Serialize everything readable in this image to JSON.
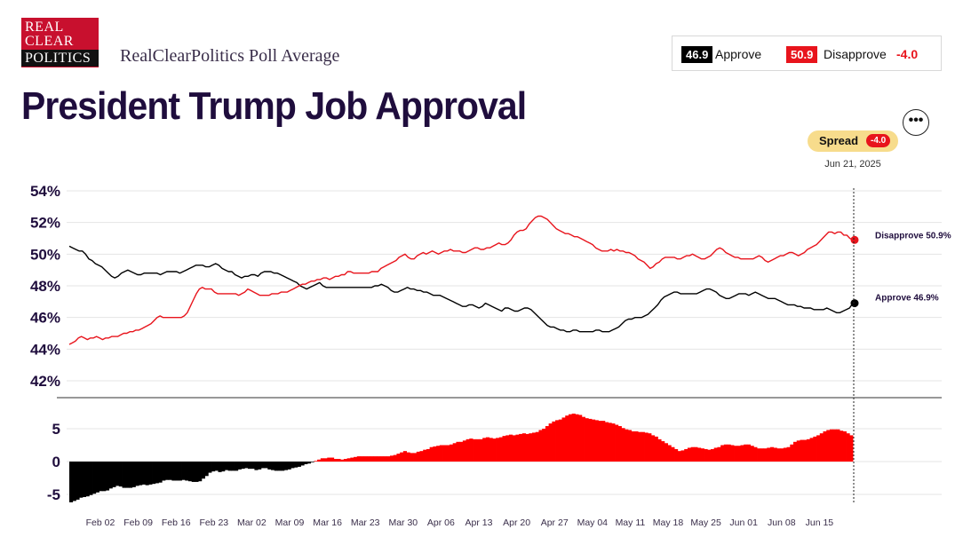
{
  "header": {
    "logo_line1": "REAL",
    "logo_line2": "CLEAR",
    "logo_line3": "POLITICS",
    "subtitle": "RealClearPolitics Poll Average",
    "title": "President Trump Job Approval",
    "more_icon": "ellipsis-icon"
  },
  "legend": {
    "approve_value": "46.9",
    "approve_label": "Approve",
    "disapprove_value": "50.9",
    "disapprove_label": "Disapprove",
    "spread_value": "-4.0"
  },
  "spread_badge": {
    "label": "Spread",
    "value": "-4.0",
    "date": "Jun 21, 2025"
  },
  "colors": {
    "approve": "#000000",
    "disapprove": "#e8141c",
    "title": "#1f0d3d",
    "spread_pill": "#f7dc8c"
  },
  "chart_data": {
    "type": "line",
    "y_ticks": [
      "54%",
      "52%",
      "50%",
      "48%",
      "46%",
      "44%",
      "42%"
    ],
    "y_tick_values": [
      54,
      52,
      50,
      48,
      46,
      44,
      42
    ],
    "ylim": [
      41.2,
      54.6
    ],
    "x_ticks": [
      "Feb 02",
      "Feb 09",
      "Feb 16",
      "Feb 23",
      "Mar 02",
      "Mar 09",
      "Mar 16",
      "Mar 23",
      "Mar 30",
      "Apr 06",
      "Apr 13",
      "Apr 20",
      "Apr 27",
      "May 04",
      "May 11",
      "May 18",
      "May 25",
      "Jun 01",
      "Jun 08",
      "Jun 15"
    ],
    "end_labels": {
      "disapprove": "Disapprove 50.9%",
      "approve": "Approve 46.9%"
    },
    "spread_y_ticks": [
      "5",
      "0",
      "-5"
    ],
    "spread_y_tick_values": [
      5,
      0,
      -5
    ],
    "spread_ylim": [
      -7,
      8.5
    ],
    "series": [
      {
        "name": "Approve",
        "color": "#000000",
        "values": [
          50.5,
          50.4,
          50.3,
          50.2,
          50.2,
          50.0,
          49.7,
          49.6,
          49.4,
          49.3,
          49.2,
          49.0,
          48.8,
          48.6,
          48.5,
          48.6,
          48.8,
          48.9,
          49.0,
          48.9,
          48.8,
          48.7,
          48.7,
          48.8,
          48.8,
          48.8,
          48.8,
          48.8,
          48.7,
          48.8,
          48.9,
          48.9,
          48.9,
          48.9,
          48.8,
          48.9,
          49.0,
          49.1,
          49.2,
          49.3,
          49.3,
          49.3,
          49.2,
          49.2,
          49.3,
          49.4,
          49.3,
          49.1,
          49.0,
          48.9,
          48.9,
          48.7,
          48.6,
          48.5,
          48.6,
          48.6,
          48.7,
          48.7,
          48.6,
          48.8,
          48.9,
          48.9,
          48.9,
          48.8,
          48.8,
          48.7,
          48.6,
          48.5,
          48.4,
          48.3,
          48.2,
          48.0,
          47.9,
          47.8,
          47.9,
          48.0,
          48.1,
          48.2,
          48.0,
          47.9,
          47.9,
          47.9,
          47.9,
          47.9,
          47.9,
          47.9,
          47.9,
          47.9,
          47.9,
          47.9,
          47.9,
          47.9,
          47.9,
          47.9,
          48.0,
          48.0,
          48.1,
          48.0,
          47.9,
          47.7,
          47.6,
          47.6,
          47.7,
          47.8,
          47.9,
          47.8,
          47.8,
          47.7,
          47.7,
          47.6,
          47.6,
          47.5,
          47.4,
          47.4,
          47.4,
          47.3,
          47.2,
          47.1,
          47.0,
          46.9,
          46.8,
          46.7,
          46.7,
          46.8,
          46.8,
          46.7,
          46.6,
          46.7,
          46.9,
          46.8,
          46.7,
          46.6,
          46.5,
          46.4,
          46.6,
          46.6,
          46.5,
          46.4,
          46.4,
          46.5,
          46.6,
          46.6,
          46.5,
          46.3,
          46.1,
          45.9,
          45.7,
          45.5,
          45.4,
          45.4,
          45.3,
          45.2,
          45.2,
          45.1,
          45.1,
          45.2,
          45.2,
          45.1,
          45.1,
          45.1,
          45.1,
          45.1,
          45.2,
          45.2,
          45.1,
          45.1,
          45.1,
          45.2,
          45.3,
          45.4,
          45.6,
          45.8,
          45.9,
          45.9,
          46.0,
          46.0,
          46.0,
          46.1,
          46.2,
          46.4,
          46.6,
          46.8,
          47.1,
          47.3,
          47.4,
          47.5,
          47.6,
          47.6,
          47.5,
          47.5,
          47.5,
          47.5,
          47.5,
          47.5,
          47.6,
          47.7,
          47.8,
          47.8,
          47.7,
          47.6,
          47.4,
          47.3,
          47.2,
          47.2,
          47.3,
          47.4,
          47.5,
          47.5,
          47.5,
          47.4,
          47.5,
          47.6,
          47.5,
          47.4,
          47.3,
          47.2,
          47.2,
          47.2,
          47.1,
          47.0,
          46.9,
          46.8,
          46.8,
          46.8,
          46.7,
          46.7,
          46.6,
          46.6,
          46.6,
          46.5,
          46.5,
          46.5,
          46.5,
          46.6,
          46.5,
          46.4,
          46.3,
          46.3,
          46.4,
          46.5,
          46.6,
          46.9
        ]
      },
      {
        "name": "Disapprove",
        "color": "#e8141c",
        "values": [
          44.3,
          44.4,
          44.5,
          44.7,
          44.8,
          44.7,
          44.6,
          44.7,
          44.7,
          44.8,
          44.7,
          44.6,
          44.7,
          44.7,
          44.8,
          44.8,
          44.8,
          44.9,
          45.0,
          45.0,
          45.1,
          45.1,
          45.2,
          45.2,
          45.3,
          45.4,
          45.5,
          45.6,
          45.8,
          46.0,
          46.1,
          46.0,
          46.0,
          46.0,
          46.0,
          46.0,
          46.0,
          46.0,
          46.1,
          46.3,
          46.7,
          47.1,
          47.5,
          47.8,
          47.9,
          47.8,
          47.8,
          47.8,
          47.6,
          47.5,
          47.5,
          47.5,
          47.5,
          47.5,
          47.5,
          47.5,
          47.4,
          47.5,
          47.6,
          47.8,
          47.7,
          47.6,
          47.5,
          47.4,
          47.4,
          47.4,
          47.4,
          47.5,
          47.5,
          47.5,
          47.6,
          47.6,
          47.6,
          47.7,
          47.8,
          47.9,
          48.0,
          48.1,
          48.1,
          48.2,
          48.3,
          48.3,
          48.4,
          48.4,
          48.5,
          48.5,
          48.4,
          48.5,
          48.6,
          48.6,
          48.7,
          48.7,
          48.9,
          48.9,
          48.8,
          48.8,
          48.8,
          48.8,
          48.8,
          48.8,
          48.9,
          48.9,
          48.9,
          49.1,
          49.2,
          49.3,
          49.4,
          49.5,
          49.6,
          49.8,
          49.9,
          50.0,
          49.8,
          49.7,
          49.7,
          49.9,
          50.0,
          50.1,
          50.0,
          50.1,
          50.2,
          50.1,
          50.0,
          50.1,
          50.2,
          50.2,
          50.3,
          50.2,
          50.2,
          50.2,
          50.1,
          50.1,
          50.2,
          50.3,
          50.4,
          50.4,
          50.3,
          50.3,
          50.4,
          50.4,
          50.5,
          50.6,
          50.7,
          50.6,
          50.6,
          50.7,
          50.9,
          51.2,
          51.4,
          51.5,
          51.5,
          51.6,
          51.9,
          52.1,
          52.3,
          52.4,
          52.4,
          52.3,
          52.2,
          52.0,
          51.8,
          51.6,
          51.5,
          51.4,
          51.3,
          51.3,
          51.2,
          51.1,
          51.1,
          51.0,
          50.9,
          50.8,
          50.7,
          50.6,
          50.4,
          50.3,
          50.2,
          50.2,
          50.2,
          50.3,
          50.2,
          50.3,
          50.2,
          50.2,
          50.1,
          50.1,
          50.0,
          49.9,
          49.7,
          49.6,
          49.5,
          49.3,
          49.1,
          49.2,
          49.4,
          49.5,
          49.7,
          49.8,
          49.8,
          49.8,
          49.8,
          49.7,
          49.7,
          49.8,
          49.9,
          49.9,
          50.0,
          49.9,
          49.8,
          49.7,
          49.7,
          49.8,
          49.9,
          50.1,
          50.3,
          50.4,
          50.3,
          50.1,
          50.0,
          49.9,
          49.8,
          49.8,
          49.7,
          49.7,
          49.7,
          49.7,
          49.7,
          49.8,
          49.9,
          49.8,
          49.6,
          49.5,
          49.6,
          49.7,
          49.8,
          49.9,
          49.9,
          50.0,
          50.1,
          50.1,
          50.0,
          49.9,
          50.0,
          50.1,
          50.3,
          50.4,
          50.5,
          50.6,
          50.8,
          51.0,
          51.2,
          51.4,
          51.4,
          51.3,
          51.4,
          51.4,
          51.2,
          51.2,
          51.0,
          50.9
        ]
      }
    ],
    "spread_values": [
      -6.2,
      -6.0,
      -5.8,
      -5.5,
      -5.4,
      -5.3,
      -5.1,
      -4.9,
      -4.7,
      -4.5,
      -4.5,
      -4.4,
      -4.1,
      -3.9,
      -3.7,
      -3.8,
      -4.0,
      -4.0,
      -4.0,
      -3.9,
      -3.7,
      -3.6,
      -3.5,
      -3.6,
      -3.5,
      -3.4,
      -3.3,
      -3.2,
      -2.9,
      -2.8,
      -2.8,
      -2.9,
      -2.9,
      -2.9,
      -2.8,
      -2.9,
      -3.0,
      -3.1,
      -3.1,
      -3.0,
      -2.6,
      -2.2,
      -1.7,
      -1.5,
      -1.4,
      -1.6,
      -1.5,
      -1.3,
      -1.4,
      -1.4,
      -1.4,
      -1.2,
      -1.1,
      -1.0,
      -1.1,
      -1.1,
      -1.3,
      -1.2,
      -1.0,
      -1.0,
      -1.2,
      -1.3,
      -1.4,
      -1.4,
      -1.4,
      -1.3,
      -1.2,
      -1.0,
      -0.9,
      -0.8,
      -0.6,
      -0.4,
      -0.3,
      -0.1,
      0.1,
      0.3,
      0.5,
      0.5,
      0.6,
      0.6,
      0.4,
      0.4,
      0.3,
      0.4,
      0.5,
      0.6,
      0.7,
      0.8,
      0.8,
      0.8,
      0.8,
      0.8,
      0.8,
      0.8,
      0.8,
      0.8,
      0.8,
      0.9,
      1.0,
      1.2,
      1.4,
      1.6,
      1.4,
      1.3,
      1.3,
      1.5,
      1.6,
      1.8,
      1.9,
      2.2,
      2.3,
      2.4,
      2.5,
      2.5,
      2.5,
      2.6,
      2.8,
      3.0,
      3.0,
      3.2,
      3.4,
      3.5,
      3.4,
      3.4,
      3.4,
      3.6,
      3.7,
      3.6,
      3.5,
      3.6,
      3.7,
      3.9,
      4.0,
      4.1,
      4.0,
      4.1,
      4.2,
      4.3,
      4.2,
      4.3,
      4.4,
      4.5,
      4.8,
      5.0,
      5.4,
      5.8,
      6.1,
      6.3,
      6.4,
      6.7,
      7.0,
      7.2,
      7.3,
      7.2,
      7.1,
      6.8,
      6.6,
      6.5,
      6.4,
      6.3,
      6.2,
      6.2,
      6.0,
      5.9,
      5.8,
      5.6,
      5.4,
      5.1,
      4.9,
      4.8,
      4.6,
      4.6,
      4.5,
      4.5,
      4.4,
      4.3,
      4.0,
      3.8,
      3.4,
      3.1,
      2.8,
      2.5,
      2.2,
      1.9,
      1.6,
      1.7,
      1.9,
      2.1,
      2.2,
      2.2,
      2.1,
      2.0,
      1.9,
      1.8,
      1.9,
      2.1,
      2.2,
      2.5,
      2.6,
      2.6,
      2.5,
      2.4,
      2.4,
      2.5,
      2.6,
      2.6,
      2.4,
      2.2,
      2.0,
      2.0,
      2.0,
      2.1,
      2.2,
      2.1,
      2.0,
      2.0,
      2.1,
      2.2,
      2.6,
      3.0,
      3.2,
      3.3,
      3.3,
      3.4,
      3.6,
      3.8,
      4.0,
      4.3,
      4.6,
      4.8,
      4.9,
      4.9,
      4.9,
      4.7,
      4.6,
      4.3,
      4.0
    ]
  }
}
